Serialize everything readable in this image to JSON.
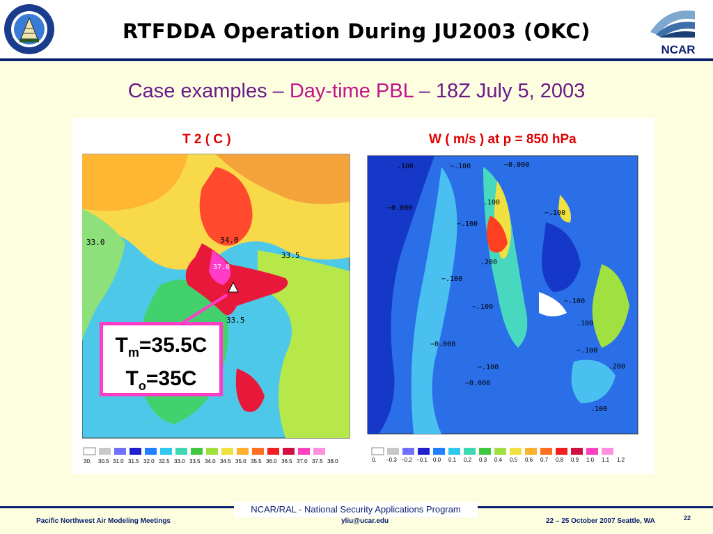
{
  "header": {
    "title": "RTFDDA Operation During JU2003 (OKC)",
    "left_logo_text": "ARMY TEST AND EVALUATION COMMAND",
    "right_logo_text": "NCAR"
  },
  "subtitle": {
    "part1": "Case examples – ",
    "part2": "Day-time PBL",
    "part3": " – 18Z July 5, 2003"
  },
  "left_plot": {
    "title": "T 2 ( C )",
    "contour_labels": [
      "33.0",
      "34.0",
      "33.5",
      "33.5",
      "37.0"
    ],
    "scale_values": [
      "30.",
      "30.5",
      "31.0",
      "31.5",
      "32.0",
      "32.5",
      "33.0",
      "33.5",
      "34.0",
      "34.5",
      "35.0",
      "35.5",
      "36.0",
      "36.5",
      "37.0",
      "37.5",
      "38.0"
    ]
  },
  "callout": {
    "line1_main": "T",
    "line1_sub": "m",
    "line1_rest": "=35.5C",
    "line2_main": "T",
    "line2_sub": "o",
    "line2_rest": "=35C"
  },
  "right_plot": {
    "title": "W ( m/s ) at p = 850 hPa",
    "contour_labels": [
      ".100",
      "−.100",
      "−0.000",
      "−0.000",
      ".100",
      "−.100",
      "−.100",
      ".200",
      "−.100",
      "−.100",
      "−.100",
      ".100",
      "−0.000",
      "−.100",
      "−.100",
      "−0.000",
      ".200",
      ".100"
    ],
    "scale_values": [
      "0.",
      "−0.3",
      "−0.2",
      "−0.1",
      "0.0",
      "0.1",
      "0.2",
      "0.3",
      "0.4",
      "0.5",
      "0.6",
      "0.7",
      "0.8",
      "0.9",
      "1.0",
      "1.1",
      "1.2"
    ]
  },
  "footer": {
    "center": "NCAR/RAL - National Security Applications Program",
    "left": "Pacific Northwest Air Modeling Meetings",
    "mid": "yliu@ucar.edu",
    "right": "22 – 25 October 2007  Seattle, WA",
    "page": "22"
  },
  "colors": {
    "navy": "#0a1f6e",
    "title_purple": "#6a1b8a",
    "highlight_magenta": "#c0148a",
    "plot_title_red": "#e00000",
    "callout_border": "#ff3cc8",
    "background": "#fdfde0"
  }
}
